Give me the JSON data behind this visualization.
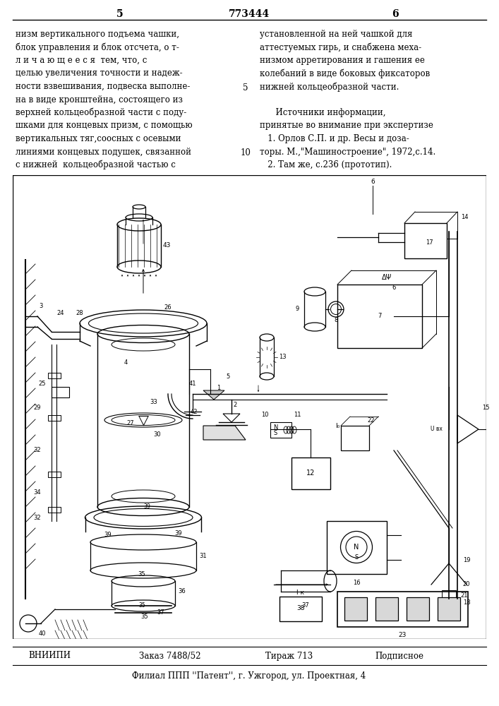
{
  "page_number_left": "5",
  "page_number_right": "6",
  "patent_number": "773444",
  "header": {
    "left_col_lines": [
      "низм вертикального подъема чашки,",
      "блок управления и блок отсчета, о т-",
      "л и ч а ю щ е е с я  тем, что, с",
      "целью увеличения точности и надеж-",
      "ности взвешивания, подвеска выполне-",
      "на в виде кронштейна, состоящего из",
      "верхней кольцеобразной части с поду-",
      "шками для концевых призм, с помощью",
      "вертикальных тяг,соосных с осевыми",
      "линиями концевых подушек, связанной",
      "с нижней  кольцеобразной частью с"
    ],
    "right_col_lines": [
      "установленной на ней чашкой для",
      "аттестуемых гирь, и снабжена меха-",
      "низмом арретирования и гашения ее",
      "колебаний в виде боковых фиксаторов",
      "нижней кольцеобразной части.",
      "",
      "      Источники информации,",
      "принятые во внимание при экспертизе",
      "   1. Орлов С.П. и др. Весы и доза-",
      "торы. М.,\"Машиностроение\", 1972,с.14.",
      "   2. Там же, с.236 (прототип)."
    ]
  },
  "line_nums": [
    {
      "text": "5",
      "row": 4
    },
    {
      "text": "10",
      "row": 9
    }
  ],
  "footer": {
    "line1_parts": [
      "ВНИИПИ",
      "Заказ 7488/52",
      "Тираж 713",
      "Подписное"
    ],
    "line1_x": [
      0.1,
      0.34,
      0.58,
      0.8
    ],
    "line2": "Филиал ППП ''Патент'', г. Ужгород, ул. Проектная, 4"
  },
  "bg_color": "#ffffff",
  "text_color": "#000000"
}
